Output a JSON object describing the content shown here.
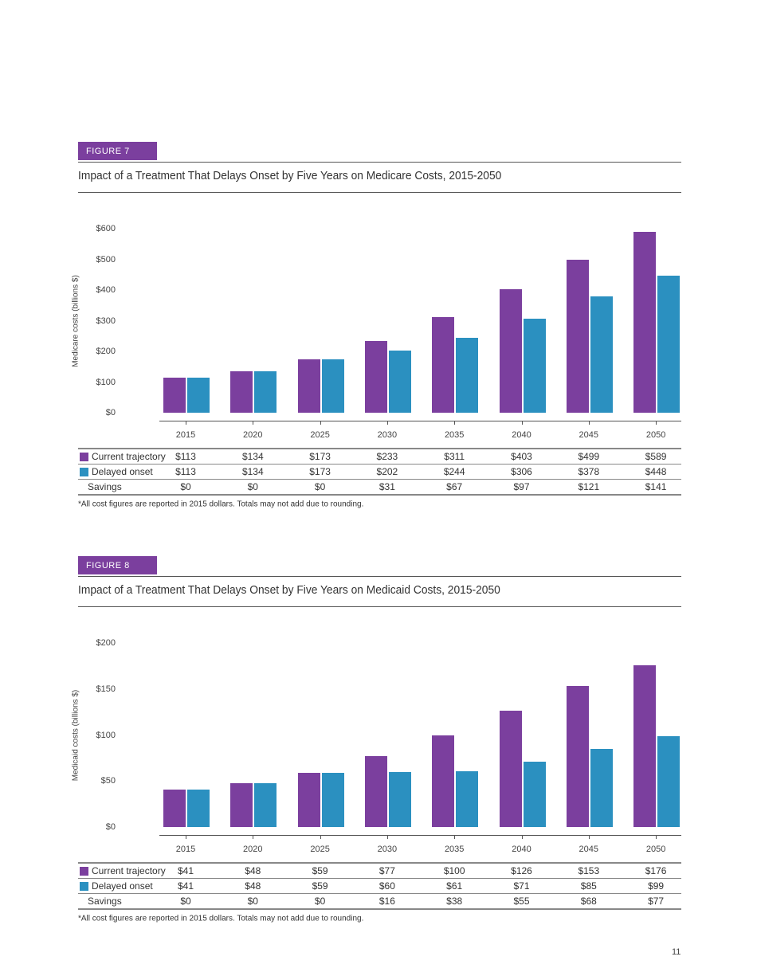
{
  "colors": {
    "current": "#7b3f9e",
    "delayed": "#2b90c0",
    "tag": "#7b3f9e"
  },
  "page_number": "11",
  "chart_data": [
    {
      "type": "bar",
      "figure_label": "FIGURE 7",
      "title": "Impact of a Treatment That Delays Onset by Five Years on Medicare Costs, 2015-2050",
      "ylabel": "Medicare costs (billions $)",
      "ylim": [
        0,
        600
      ],
      "yticks": [
        "$0",
        "$100",
        "$200",
        "$300",
        "$400",
        "$500",
        "$600"
      ],
      "ytick_values": [
        0,
        100,
        200,
        300,
        400,
        500,
        600
      ],
      "categories": [
        "2015",
        "2020",
        "2025",
        "2030",
        "2035",
        "2040",
        "2045",
        "2050"
      ],
      "series": [
        {
          "name": "Current trajectory",
          "values": [
            113,
            134,
            173,
            233,
            311,
            403,
            499,
            589
          ],
          "labels": [
            "$113",
            "$134",
            "$173",
            "$233",
            "$311",
            "$403",
            "$499",
            "$589"
          ]
        },
        {
          "name": "Delayed onset",
          "values": [
            113,
            134,
            173,
            202,
            244,
            306,
            378,
            448
          ],
          "labels": [
            "$113",
            "$134",
            "$173",
            "$202",
            "$244",
            "$306",
            "$378",
            "$448"
          ]
        }
      ],
      "savings": {
        "name": "Savings",
        "labels": [
          "$0",
          "$0",
          "$0",
          "$31",
          "$67",
          "$97",
          "$121",
          "$141"
        ]
      },
      "footnote": "*All cost figures are reported in 2015 dollars. Totals may not add due to rounding."
    },
    {
      "type": "bar",
      "figure_label": "FIGURE 8",
      "title": "Impact of a Treatment That Delays Onset by Five Years on Medicaid Costs, 2015-2050",
      "ylabel": "Medicaid costs (billions $)",
      "ylim": [
        0,
        200
      ],
      "yticks": [
        "$0",
        "$50",
        "$100",
        "$150",
        "$200"
      ],
      "ytick_values": [
        0,
        50,
        100,
        150,
        200
      ],
      "categories": [
        "2015",
        "2020",
        "2025",
        "2030",
        "2035",
        "2040",
        "2045",
        "2050"
      ],
      "series": [
        {
          "name": "Current trajectory",
          "values": [
            41,
            48,
            59,
            77,
            100,
            126,
            153,
            176
          ],
          "labels": [
            "$41",
            "$48",
            "$59",
            "$77",
            "$100",
            "$126",
            "$153",
            "$176"
          ]
        },
        {
          "name": "Delayed onset",
          "values": [
            41,
            48,
            59,
            60,
            61,
            71,
            85,
            99
          ],
          "labels": [
            "$41",
            "$48",
            "$59",
            "$60",
            "$61",
            "$71",
            "$85",
            "$99"
          ]
        }
      ],
      "savings": {
        "name": "Savings",
        "labels": [
          "$0",
          "$0",
          "$0",
          "$16",
          "$38",
          "$55",
          "$68",
          "$77"
        ]
      },
      "footnote": "*All cost figures are reported in 2015 dollars. Totals may not add due to rounding."
    }
  ]
}
